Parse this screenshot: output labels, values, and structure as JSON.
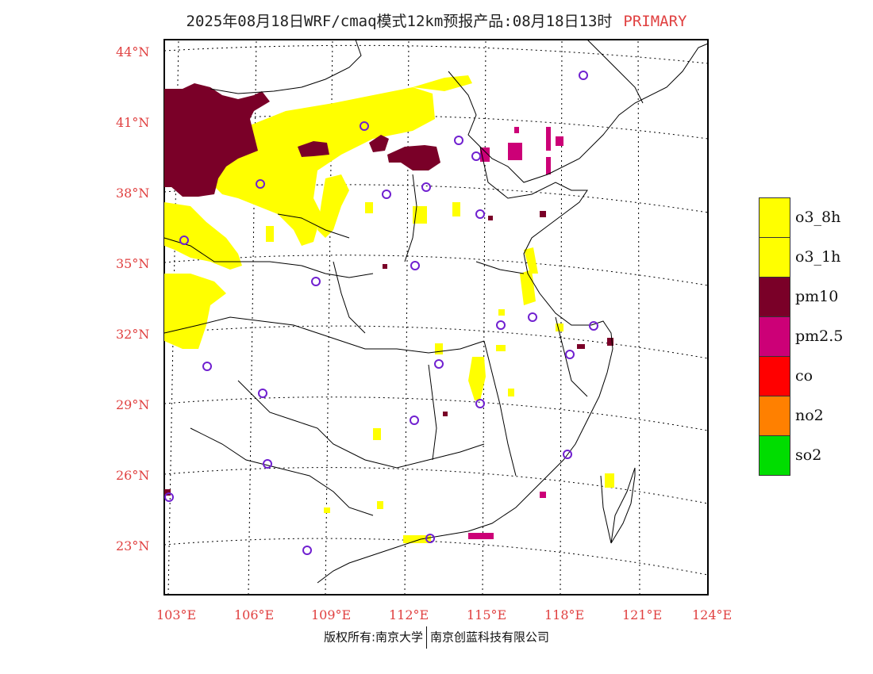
{
  "title": {
    "main": "2025年08月18日WRF/cmaq模式12km预报产品:08月18日13时",
    "tag": "PRIMARY"
  },
  "axes": {
    "lat_labels": [
      "44°N",
      "41°N",
      "38°N",
      "35°N",
      "32°N",
      "29°N",
      "26°N",
      "23°N"
    ],
    "lon_labels": [
      "103°E",
      "106°E",
      "109°E",
      "112°E",
      "115°E",
      "118°E",
      "121°E",
      "124°E"
    ]
  },
  "legend": [
    {
      "label": "o3_8h",
      "color": "#ffff00"
    },
    {
      "label": "o3_1h",
      "color": "#ffff00"
    },
    {
      "label": "pm10",
      "color": "#7a0028"
    },
    {
      "label": "pm2.5",
      "color": "#cc0077"
    },
    {
      "label": "co",
      "color": "#ff0000"
    },
    {
      "label": "no2",
      "color": "#ff8000"
    },
    {
      "label": "so2",
      "color": "#00dd00"
    }
  ],
  "map": {
    "type": "pollutant-primary-map",
    "extent": {
      "lon": [
        103,
        124
      ],
      "lat": [
        22,
        44
      ]
    },
    "colors": {
      "o3": "#ffff00",
      "pm10": "#7a0028",
      "pm25": "#cc0077",
      "border": "#000000",
      "station": "#7020d0"
    }
  },
  "footer": {
    "left": "版权所有:南京大学",
    "right": "南京创蓝科技有限公司"
  }
}
